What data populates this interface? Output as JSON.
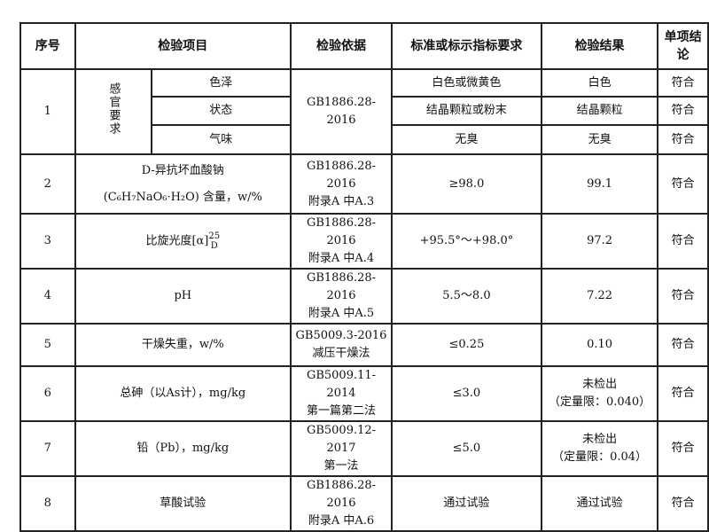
{
  "headers": [
    "序号",
    "检验项目",
    "检验依据",
    "标准或标示指标要求",
    "检验结果",
    "单项结论"
  ],
  "sensory": {
    "group": "感官要求",
    "no": "1",
    "basis": "GB1886.28-2016",
    "items": [
      {
        "name": "色泽",
        "req": "白色或微黄色",
        "result": "白色",
        "conc": "符合"
      },
      {
        "name": "状态",
        "req": "结晶颗粒或粉末",
        "result": "结晶颗粒",
        "conc": "符合"
      },
      {
        "name": "气味",
        "req": "无臭",
        "result": "无臭",
        "conc": "符合"
      }
    ]
  },
  "rows": [
    {
      "no": "2",
      "item1": "D-异抗坏血酸钠",
      "item2": "(C₆H₇NaO₆·H₂O) 含量，w/%",
      "basis1": "GB1886.28-2016",
      "basis2": "附录A 中A.3",
      "req": "≥98.0",
      "result1": "99.1",
      "result2": "",
      "conc": "符合"
    },
    {
      "no": "3",
      "item1": "比旋光度[α]",
      "item2": "",
      "basis1": "GB1886.28-2016",
      "basis2": "附录A 中A.4",
      "req": "+95.5°～+98.0°",
      "result1": "97.2",
      "result2": "",
      "conc": "符合"
    },
    {
      "no": "4",
      "item1": "pH",
      "item2": "",
      "basis1": "GB1886.28-2016",
      "basis2": "附录A 中A.5",
      "req": "5.5～8.0",
      "result1": "7.22",
      "result2": "",
      "conc": "符合"
    },
    {
      "no": "5",
      "item1": "干燥失重，w/%",
      "item2": "",
      "basis1": "GB5009.3-2016",
      "basis2": "减压干燥法",
      "req": "≤0.25",
      "result1": "0.10",
      "result2": "",
      "conc": "符合"
    },
    {
      "no": "6",
      "item1": "总砷（以As计），mg/kg",
      "item2": "",
      "basis1": "GB5009.11-2014",
      "basis2": "第一篇第二法",
      "req": "≤3.0",
      "result1": "未检出",
      "result2": "（定量限：0.040）",
      "conc": "符合"
    },
    {
      "no": "7",
      "item1": "铅（Pb），mg/kg",
      "item2": "",
      "basis1": "GB5009.12-2017",
      "basis2": "第一法",
      "req": "≤5.0",
      "result1": "未检出",
      "result2": "（定量限：0.04）",
      "conc": "符合"
    },
    {
      "no": "8",
      "item1": "草酸试验",
      "item2": "",
      "basis1": "GB1886.28-2016",
      "basis2": "附录A 中A.6",
      "req": "通过试验",
      "result1": "通过试验",
      "result2": "",
      "conc": "符合"
    }
  ],
  "rotation_sup": "25",
  "rotation_sub": "D"
}
